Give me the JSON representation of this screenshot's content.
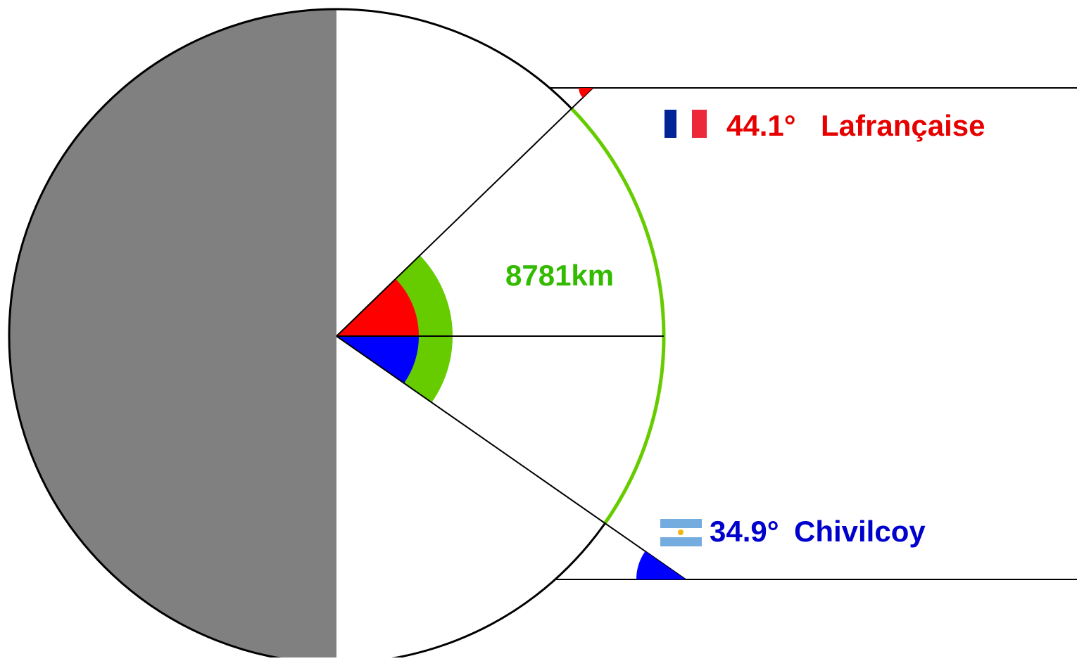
{
  "diagram": {
    "colors": {
      "background": "#ffffff",
      "hemisphere_shadow": "#808080",
      "circle_outline": "#000000",
      "arc_distance": "#66cc00",
      "angle_north": "#ff0000",
      "angle_south": "#0000ff",
      "guide_lines": "#000000"
    },
    "north_city": {
      "latitude_label": "44.1°",
      "name": "Lafrançaise",
      "text_color": "#e60000",
      "flag": {
        "icon": "france-flag-icon",
        "stripes": [
          "#002395",
          "#ffffff",
          "#ed2939"
        ]
      }
    },
    "south_city": {
      "latitude_label": "34.9°",
      "name": "Chivilcoy",
      "text_color": "#0000cc",
      "flag": {
        "icon": "argentina-flag-icon",
        "stripes": [
          "#74acdf",
          "#ffffff",
          "#74acdf"
        ],
        "sun": "#f6b40e"
      }
    },
    "distance": {
      "label": "8781km",
      "text_color": "#33bb00"
    }
  }
}
